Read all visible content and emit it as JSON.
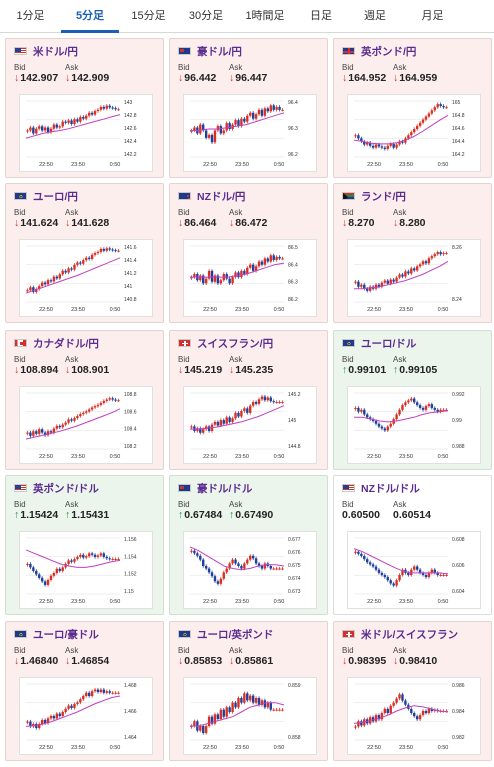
{
  "tabs": [
    {
      "label": "1分足",
      "active": false
    },
    {
      "label": "5分足",
      "active": true
    },
    {
      "label": "15分足",
      "active": false
    },
    {
      "label": "30分足",
      "active": false
    },
    {
      "label": "1時間足",
      "active": false
    },
    {
      "label": "日足",
      "active": false
    },
    {
      "label": "週足",
      "active": false
    },
    {
      "label": "月足",
      "active": false
    }
  ],
  "labels": {
    "bid": "Bid",
    "ask": "Ask"
  },
  "colors": {
    "down": "#d93025",
    "up": "#1e8e3e",
    "candle_up": "#d93025",
    "candle_down": "#1f3f9a",
    "ma": "#c040c0"
  },
  "pairs": [
    {
      "name": "米ドル/円",
      "flag": "us-flag",
      "dir": "down",
      "bid": "142.907",
      "ask": "142.909",
      "x_ticks": [
        "22:50",
        "23:50",
        "0:50"
      ],
      "y_ticks": [
        "143",
        "142.8",
        "142.6",
        "142.4",
        "142.2"
      ],
      "chart_data": {
        "type": "candlestick",
        "ylim": [
          142.1,
          143.05
        ],
        "close": [
          142.55,
          142.6,
          142.5,
          142.58,
          142.62,
          142.55,
          142.6,
          142.52,
          142.58,
          142.65,
          142.6,
          142.62,
          142.7,
          142.68,
          142.72,
          142.66,
          142.74,
          142.7,
          142.78,
          142.75,
          142.8,
          142.85,
          142.82,
          142.88,
          142.9,
          142.95,
          142.92,
          142.97,
          142.94,
          142.93,
          142.91,
          142.91
        ],
        "ma": [
          142.42,
          142.46,
          142.5,
          142.53,
          142.55,
          142.58,
          142.62,
          142.66,
          142.7,
          142.74,
          142.78,
          142.82
        ]
      }
    },
    {
      "name": "豪ドル/円",
      "flag": "au-flag",
      "dir": "down",
      "bid": "96.442",
      "ask": "96.447",
      "x_ticks": [
        "22:50",
        "23:50",
        "0:50"
      ],
      "y_ticks": [
        "96.4",
        "96.3",
        "96.2"
      ],
      "chart_data": {
        "type": "candlestick",
        "ylim": [
          96.12,
          96.5
        ],
        "close": [
          96.3,
          96.32,
          96.28,
          96.34,
          96.3,
          96.25,
          96.27,
          96.22,
          96.3,
          96.33,
          96.28,
          96.3,
          96.35,
          96.31,
          96.34,
          96.37,
          96.33,
          96.38,
          96.36,
          96.4,
          96.42,
          96.38,
          96.41,
          96.44,
          96.4,
          96.45,
          96.43,
          96.47,
          96.44,
          96.46,
          96.44,
          96.44
        ],
        "ma": [
          96.3,
          96.3,
          96.31,
          96.31,
          96.32,
          96.33,
          96.34,
          96.36,
          96.38,
          96.4,
          96.42
        ]
      }
    },
    {
      "name": "英ポンド/円",
      "flag": "gb-flag",
      "dir": "down",
      "bid": "164.952",
      "ask": "164.959",
      "x_ticks": [
        "22:50",
        "23:50",
        "0:50"
      ],
      "y_ticks": [
        "165",
        "164.8",
        "164.6",
        "164.4",
        "164.2"
      ],
      "chart_data": {
        "type": "candlestick",
        "ylim": [
          164.15,
          165.05
        ],
        "close": [
          164.5,
          164.45,
          164.4,
          164.35,
          164.38,
          164.33,
          164.3,
          164.35,
          164.32,
          164.3,
          164.28,
          164.33,
          164.36,
          164.3,
          164.35,
          164.4,
          164.38,
          164.45,
          164.5,
          164.55,
          164.6,
          164.65,
          164.7,
          164.75,
          164.8,
          164.85,
          164.9,
          164.95,
          165.0,
          164.97,
          164.95,
          164.95
        ],
        "ma": [
          164.42,
          164.4,
          164.37,
          164.36,
          164.36,
          164.38,
          164.42,
          164.48,
          164.56,
          164.65,
          164.74,
          164.82
        ]
      }
    },
    {
      "name": "ユーロ/円",
      "flag": "eu-flag",
      "dir": "down",
      "bid": "141.624",
      "ask": "141.628",
      "x_ticks": [
        "22:50",
        "23:50",
        "0:50"
      ],
      "y_ticks": [
        "141.6",
        "141.4",
        "141.2",
        "141",
        "140.8"
      ],
      "chart_data": {
        "type": "candlestick",
        "ylim": [
          140.75,
          141.7
        ],
        "close": [
          140.95,
          141.0,
          140.92,
          140.97,
          141.02,
          141.08,
          141.05,
          141.12,
          141.1,
          141.18,
          141.15,
          141.22,
          141.28,
          141.25,
          141.32,
          141.3,
          141.38,
          141.42,
          141.4,
          141.46,
          141.5,
          141.48,
          141.55,
          141.58,
          141.6,
          141.65,
          141.62,
          141.66,
          141.64,
          141.63,
          141.62,
          141.62
        ],
        "ma": [
          140.9,
          140.95,
          141.0,
          141.05,
          141.1,
          141.15,
          141.2,
          141.26,
          141.32,
          141.38,
          141.44,
          141.5
        ]
      }
    },
    {
      "name": "NZドル/円",
      "flag": "nz-flag",
      "dir": "down",
      "bid": "86.464",
      "ask": "86.472",
      "x_ticks": [
        "22:50",
        "23:50",
        "0:50"
      ],
      "y_ticks": [
        "86.5",
        "86.4",
        "86.3",
        "86.2"
      ],
      "chart_data": {
        "type": "candlestick",
        "ylim": [
          86.18,
          86.54
        ],
        "close": [
          86.34,
          86.36,
          86.32,
          86.35,
          86.3,
          86.33,
          86.38,
          86.31,
          86.35,
          86.3,
          86.32,
          86.36,
          86.33,
          86.3,
          86.34,
          86.37,
          86.34,
          86.38,
          86.36,
          86.4,
          86.42,
          86.38,
          86.41,
          86.44,
          86.42,
          86.46,
          86.44,
          86.48,
          86.45,
          86.47,
          86.46,
          86.46
        ],
        "ma": [
          86.34,
          86.34,
          86.34,
          86.34,
          86.34,
          86.35,
          86.36,
          86.38,
          86.4,
          86.42,
          86.43
        ]
      }
    },
    {
      "name": "ランド/円",
      "flag": "za-flag",
      "dir": "down",
      "bid": "8.270",
      "ask": "8.280",
      "x_ticks": [
        "22:50",
        "23:50",
        "0:50"
      ],
      "y_ticks": [
        "8.26",
        "8.24"
      ],
      "chart_data": {
        "type": "candlestick",
        "ylim": [
          8.225,
          8.28
        ],
        "close": [
          8.245,
          8.24,
          8.242,
          8.238,
          8.236,
          8.24,
          8.238,
          8.242,
          8.24,
          8.244,
          8.246,
          8.243,
          8.247,
          8.245,
          8.249,
          8.252,
          8.25,
          8.255,
          8.253,
          8.258,
          8.256,
          8.26,
          8.262,
          8.265,
          8.263,
          8.268,
          8.27,
          8.272,
          8.274,
          8.272,
          8.273,
          8.273
        ],
        "ma": [
          8.238,
          8.238,
          8.239,
          8.24,
          8.242,
          8.244,
          8.246,
          8.249,
          8.252,
          8.256,
          8.26,
          8.265
        ]
      }
    },
    {
      "name": "カナダドル/円",
      "flag": "ca-flag",
      "dir": "down",
      "bid": "108.894",
      "ask": "108.901",
      "x_ticks": [
        "22:50",
        "23:50",
        "0:50"
      ],
      "y_ticks": [
        "108.8",
        "108.6",
        "108.4",
        "108.2"
      ],
      "chart_data": {
        "type": "candlestick",
        "ylim": [
          108.15,
          109.0
        ],
        "close": [
          108.4,
          108.35,
          108.42,
          108.38,
          108.45,
          108.4,
          108.36,
          108.42,
          108.4,
          108.46,
          108.5,
          108.48,
          108.52,
          108.55,
          108.6,
          108.58,
          108.62,
          108.65,
          108.68,
          108.7,
          108.72,
          108.75,
          108.78,
          108.8,
          108.82,
          108.85,
          108.88,
          108.9,
          108.92,
          108.9,
          108.89,
          108.89
        ],
        "ma": [
          108.3,
          108.33,
          108.36,
          108.39,
          108.42,
          108.46,
          108.5,
          108.55,
          108.6,
          108.65,
          108.7,
          108.76
        ]
      }
    },
    {
      "name": "スイスフラン/円",
      "flag": "ch-flag",
      "dir": "down",
      "bid": "145.219",
      "ask": "145.235",
      "x_ticks": [
        "22:50",
        "23:50",
        "0:50"
      ],
      "y_ticks": [
        "145.2",
        "145",
        "144.8"
      ],
      "chart_data": {
        "type": "candlestick",
        "ylim": [
          144.7,
          145.32
        ],
        "close": [
          144.95,
          144.9,
          144.93,
          144.88,
          144.92,
          144.95,
          144.9,
          144.97,
          145.0,
          144.96,
          145.02,
          144.98,
          145.05,
          145.0,
          145.04,
          145.1,
          145.06,
          145.12,
          145.15,
          145.1,
          145.18,
          145.22,
          145.2,
          145.25,
          145.28,
          145.24,
          145.27,
          145.23,
          145.22,
          145.22,
          145.22,
          145.22
        ],
        "ma": [
          144.92,
          144.92,
          144.93,
          144.94,
          144.96,
          144.98,
          145.0,
          145.03,
          145.06,
          145.1,
          145.14,
          145.18
        ]
      }
    },
    {
      "name": "ユーロ/ドル",
      "flag": "eu-flag",
      "dir": "up",
      "bid": "0.99101",
      "ask": "0.99105",
      "x_ticks": [
        "22:50",
        "23:50",
        "0:50"
      ],
      "y_ticks": [
        "0.992",
        "0.99",
        "0.988"
      ],
      "chart_data": {
        "type": "candlestick",
        "ylim": [
          0.9868,
          0.9928
        ],
        "close": [
          0.9912,
          0.9908,
          0.991,
          0.9905,
          0.9902,
          0.99,
          0.9898,
          0.9895,
          0.9892,
          0.989,
          0.9888,
          0.9892,
          0.9895,
          0.99,
          0.9905,
          0.991,
          0.9915,
          0.9918,
          0.992,
          0.9922,
          0.9918,
          0.9915,
          0.9912,
          0.991,
          0.9914,
          0.9916,
          0.9912,
          0.991,
          0.9908,
          0.991,
          0.991,
          0.991
        ],
        "ma": [
          0.9902,
          0.9902,
          0.99,
          0.9898,
          0.9897,
          0.9898,
          0.99,
          0.9902,
          0.9905,
          0.9907,
          0.9908,
          0.9909
        ]
      }
    },
    {
      "name": "英ポンド/ドル",
      "flag": "us-flag",
      "dir": "up",
      "bid": "1.15424",
      "ask": "1.15431",
      "x_ticks": [
        "22:50",
        "23:50",
        "0:50"
      ],
      "y_ticks": [
        "1.156",
        "1.154",
        "1.152",
        "1.15"
      ],
      "chart_data": {
        "type": "candlestick",
        "ylim": [
          1.1492,
          1.1572
        ],
        "close": [
          1.1535,
          1.153,
          1.1525,
          1.152,
          1.1515,
          1.151,
          1.1505,
          1.1512,
          1.1518,
          1.1522,
          1.1528,
          1.1525,
          1.153,
          1.1535,
          1.154,
          1.1538,
          1.1542,
          1.1545,
          1.1548,
          1.1544,
          1.1546,
          1.155,
          1.1548,
          1.1545,
          1.1547,
          1.155,
          1.1545,
          1.1543,
          1.1542,
          1.1542,
          1.1542,
          1.1542
        ],
        "ma": [
          1.1555,
          1.155,
          1.1545,
          1.154,
          1.1535,
          1.1532,
          1.153,
          1.153,
          1.1532,
          1.1535,
          1.1538,
          1.154
        ]
      }
    },
    {
      "name": "豪ドル/ドル",
      "flag": "au-flag",
      "dir": "up",
      "bid": "0.67484",
      "ask": "0.67490",
      "x_ticks": [
        "22:50",
        "23:50",
        "0:50"
      ],
      "y_ticks": [
        "0.677",
        "0.676",
        "0.675",
        "0.674",
        "0.673"
      ],
      "chart_data": {
        "type": "candlestick",
        "ylim": [
          0.6728,
          0.6772
        ],
        "close": [
          0.6762,
          0.676,
          0.6758,
          0.6755,
          0.675,
          0.6748,
          0.6745,
          0.6742,
          0.6738,
          0.6736,
          0.674,
          0.6745,
          0.6748,
          0.6752,
          0.6755,
          0.6752,
          0.675,
          0.6748,
          0.6752,
          0.6755,
          0.6758,
          0.6756,
          0.6752,
          0.675,
          0.6748,
          0.6752,
          0.675,
          0.6748,
          0.6748,
          0.6748,
          0.6748,
          0.6748
        ],
        "ma": [
          0.6765,
          0.6762,
          0.6758,
          0.6754,
          0.675,
          0.6748,
          0.6747,
          0.6748,
          0.675,
          0.6751,
          0.6751,
          0.675
        ]
      }
    },
    {
      "name": "NZドル/ドル",
      "flag": "us-flag",
      "dir": "flat",
      "bid": "0.60500",
      "ask": "0.60514",
      "x_ticks": [
        "22:50",
        "23:50",
        "0:50"
      ],
      "y_ticks": [
        "0.608",
        "0.606",
        "0.604"
      ],
      "chart_data": {
        "type": "candlestick",
        "ylim": [
          0.6032,
          0.6085
        ],
        "close": [
          0.6072,
          0.607,
          0.6068,
          0.6065,
          0.6062,
          0.606,
          0.6058,
          0.6055,
          0.6052,
          0.605,
          0.6048,
          0.6045,
          0.6042,
          0.604,
          0.6045,
          0.605,
          0.6055,
          0.6052,
          0.605,
          0.6055,
          0.6058,
          0.6055,
          0.6052,
          0.605,
          0.6048,
          0.6052,
          0.6055,
          0.6052,
          0.605,
          0.605,
          0.605,
          0.605
        ],
        "ma": [
          0.6075,
          0.6072,
          0.6068,
          0.6064,
          0.606,
          0.6056,
          0.6053,
          0.6052,
          0.6052,
          0.6052,
          0.6052,
          0.6051
        ]
      }
    },
    {
      "name": "ユーロ/豪ドル",
      "flag": "eu-flag",
      "dir": "down",
      "bid": "1.46840",
      "ask": "1.46854",
      "x_ticks": [
        "22:50",
        "23:50",
        "0:50"
      ],
      "y_ticks": [
        "1.468",
        "1.466",
        "1.464"
      ],
      "chart_data": {
        "type": "candlestick",
        "ylim": [
          1.4625,
          1.4695
        ],
        "close": [
          1.4648,
          1.4642,
          1.4645,
          1.464,
          1.4645,
          1.465,
          1.4646,
          1.4652,
          1.4655,
          1.4652,
          1.4658,
          1.4655,
          1.466,
          1.4664,
          1.4668,
          1.4665,
          1.467,
          1.4672,
          1.4676,
          1.468,
          1.4684,
          1.468,
          1.4686,
          1.4688,
          1.4685,
          1.4688,
          1.4684,
          1.4686,
          1.4684,
          1.4684,
          1.4684,
          1.4684
        ],
        "ma": [
          1.4642,
          1.4643,
          1.4645,
          1.4648,
          1.4652,
          1.4656,
          1.466,
          1.4665,
          1.467,
          1.4674,
          1.4678,
          1.468
        ]
      }
    },
    {
      "name": "ユーロ/英ポンド",
      "flag": "eu-flag",
      "dir": "down",
      "bid": "0.85853",
      "ask": "0.85861",
      "x_ticks": [
        "22:50",
        "23:50",
        "0:50"
      ],
      "y_ticks": [
        "0.859",
        "0.858"
      ],
      "chart_data": {
        "type": "candlestick",
        "ylim": [
          0.8572,
          0.8596
        ],
        "close": [
          0.8578,
          0.858,
          0.8576,
          0.8578,
          0.8575,
          0.8578,
          0.8582,
          0.8579,
          0.8583,
          0.8581,
          0.8585,
          0.8582,
          0.8586,
          0.8584,
          0.8588,
          0.8586,
          0.859,
          0.8588,
          0.8592,
          0.8589,
          0.8591,
          0.8588,
          0.859,
          0.8587,
          0.8589,
          0.8586,
          0.8588,
          0.8585,
          0.8585,
          0.8585,
          0.8585,
          0.8585
        ],
        "ma": [
          0.8578,
          0.8578,
          0.8579,
          0.858,
          0.8581,
          0.8582,
          0.8584,
          0.8586,
          0.8587,
          0.8588,
          0.8588,
          0.8587
        ]
      }
    },
    {
      "name": "米ドル/スイスフラン",
      "flag": "ch-flag",
      "dir": "down",
      "bid": "0.98395",
      "ask": "0.98410",
      "x_ticks": [
        "22:50",
        "23:50",
        "0:50"
      ],
      "y_ticks": [
        "0.986",
        "0.984",
        "0.982"
      ],
      "chart_data": {
        "type": "candlestick",
        "ylim": [
          0.9812,
          0.9866
        ],
        "close": [
          0.9825,
          0.983,
          0.9826,
          0.9832,
          0.9828,
          0.9834,
          0.983,
          0.9836,
          0.9832,
          0.9838,
          0.9842,
          0.9838,
          0.9845,
          0.9848,
          0.9852,
          0.9856,
          0.985,
          0.9846,
          0.9842,
          0.9838,
          0.9835,
          0.9832,
          0.9836,
          0.984,
          0.9838,
          0.9842,
          0.984,
          0.9841,
          0.984,
          0.984,
          0.984,
          0.984
        ],
        "ma": [
          0.9828,
          0.9829,
          0.9831,
          0.9833,
          0.9836,
          0.984,
          0.9843,
          0.9845,
          0.9844,
          0.9842,
          0.984,
          0.9839
        ]
      }
    }
  ]
}
